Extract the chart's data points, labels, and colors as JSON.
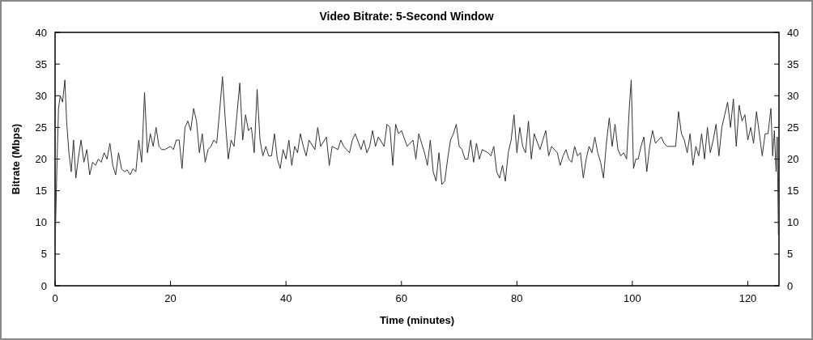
{
  "chart_data": {
    "type": "line",
    "title": "Video Bitrate: 5-Second Window",
    "xlabel": "Time (minutes)",
    "ylabel": "Bitrate (Mbps)",
    "xlim": [
      0,
      125.4
    ],
    "xticks": [
      0,
      20,
      40,
      60,
      80,
      100,
      120
    ],
    "ylim": [
      0,
      40
    ],
    "yticks": [
      0,
      5,
      10,
      15,
      20,
      25,
      30,
      35,
      40
    ],
    "y2lim": [
      0,
      40
    ],
    "y2ticks": [
      0,
      5,
      10,
      15,
      20,
      25,
      30,
      35,
      40
    ],
    "grid": false,
    "series": [
      {
        "color": "#333333",
        "x": [
          0,
          0.3,
          0.6,
          0.9,
          1.3,
          1.7,
          2.0,
          2.4,
          2.8,
          3.2,
          3.6,
          4.0,
          4.5,
          5.0,
          5.5,
          6,
          6.5,
          7,
          7.5,
          8,
          8.5,
          9,
          9.5,
          10,
          10.5,
          11,
          11.5,
          12,
          12.5,
          13,
          13.5,
          14,
          14.5,
          15,
          15.5,
          16,
          16.5,
          17,
          17.5,
          18,
          18.5,
          19,
          20,
          20.5,
          21,
          21.5,
          22,
          22.5,
          23,
          23.5,
          24,
          24.5,
          25,
          25.5,
          26,
          26.5,
          27,
          27.5,
          28,
          28.5,
          29,
          29.5,
          30,
          30.5,
          31,
          31.5,
          32,
          32.5,
          33,
          33.5,
          34,
          34.5,
          35,
          35.5,
          36,
          36.5,
          37,
          37.5,
          38,
          38.5,
          39,
          39.5,
          40,
          40.5,
          41,
          41.5,
          42,
          42.5,
          43,
          43.5,
          44,
          45,
          45.5,
          46,
          47,
          47.5,
          48,
          49,
          49.5,
          50,
          50.5,
          51,
          51.5,
          52,
          53,
          53.5,
          54,
          54.5,
          55,
          55.5,
          56,
          57,
          57.5,
          58,
          58.5,
          59,
          59.5,
          60,
          61,
          62,
          62.5,
          63,
          63.5,
          64,
          64.5,
          65,
          65.5,
          66,
          66.5,
          67,
          67.5,
          68,
          68.5,
          69,
          69.5,
          70,
          70.5,
          71,
          71.5,
          72,
          72.5,
          73,
          73.5,
          74,
          75,
          75.5,
          76,
          76.5,
          77,
          77.5,
          78,
          78.5,
          79,
          79.5,
          80,
          80.5,
          81,
          81.5,
          82,
          82.5,
          83,
          84,
          84.5,
          85,
          85.5,
          86,
          87,
          87.5,
          88,
          88.5,
          89,
          89.5,
          90,
          90.5,
          91,
          91.5,
          92,
          92.5,
          93,
          93.5,
          94,
          94.5,
          95,
          95.5,
          96,
          96.5,
          97,
          97.5,
          98,
          98.5,
          99,
          99.5,
          99.8,
          100.2,
          100.6,
          101,
          101.5,
          102,
          102.5,
          103,
          103.5,
          104,
          105,
          105.5,
          106,
          107,
          107.5,
          108,
          108.5,
          109,
          109.5,
          110,
          110.5,
          111,
          111.5,
          112,
          112.5,
          113,
          113.5,
          114,
          114.5,
          115,
          115.5,
          116,
          116.5,
          117,
          117.5,
          118,
          118.5,
          119,
          119.5,
          120,
          120.5,
          121,
          121.5,
          122,
          122.5,
          123,
          123.5,
          124,
          124.3,
          124.6,
          124.9,
          125.1,
          125.3
        ],
        "values": [
          6,
          18,
          28,
          30,
          29,
          32.5,
          26,
          21,
          18,
          23,
          17,
          20,
          23,
          19.5,
          21.5,
          17.5,
          19.5,
          19,
          20,
          19.5,
          21,
          20,
          22.5,
          19,
          17.5,
          21,
          18.5,
          18,
          18.3,
          17.5,
          18.5,
          18,
          23,
          19.5,
          30.5,
          21,
          24,
          22,
          25,
          22,
          21.5,
          21.5,
          22,
          21.5,
          23,
          23,
          18.5,
          25,
          26,
          24.5,
          28,
          26,
          21,
          24,
          19.5,
          21.5,
          22,
          23,
          22.5,
          27.5,
          33,
          26,
          20,
          23,
          22,
          27,
          32,
          23,
          27,
          24.5,
          25,
          21,
          31,
          23,
          20.5,
          22,
          20.5,
          20.5,
          24,
          20,
          18.5,
          21.5,
          20,
          23,
          19,
          22,
          21,
          24,
          22,
          20.5,
          23,
          21.5,
          25,
          22,
          23.5,
          19,
          22,
          21.5,
          23,
          22,
          21.5,
          21,
          23,
          24,
          21.5,
          23,
          21,
          22,
          24.5,
          22,
          23.5,
          22,
          25.5,
          25,
          19,
          25.5,
          24,
          24.5,
          22,
          23,
          20,
          24,
          22.5,
          21,
          19,
          23,
          18,
          16.5,
          21,
          16,
          16.5,
          20,
          23,
          24,
          25.5,
          22,
          21.5,
          20,
          20,
          23,
          19.5,
          22.5,
          20,
          21.5,
          21,
          20.5,
          22,
          18,
          17,
          19,
          16.5,
          21,
          23,
          27,
          21,
          25,
          22,
          21,
          26,
          20,
          24,
          21.5,
          23,
          24.5,
          20.5,
          22,
          21,
          19,
          20.5,
          21.5,
          20,
          19.5,
          22,
          20.5,
          21,
          17,
          20,
          22,
          21,
          23.5,
          21,
          19.5,
          17,
          22.5,
          26.5,
          22,
          25.5,
          21.5,
          20.5,
          21,
          20,
          28.5,
          32.5,
          18.5,
          20,
          20,
          22,
          23.5,
          18,
          22,
          24.5,
          22.5,
          23.5,
          22.5,
          22,
          22,
          22,
          27.5,
          24,
          23,
          21,
          24,
          19,
          22,
          20.5,
          24,
          20,
          25,
          21,
          23,
          25.5,
          20.5,
          25,
          27,
          29,
          25,
          29.5,
          22,
          28.5,
          26,
          27,
          23,
          25,
          22.5,
          27.5,
          24,
          20.5,
          24,
          24,
          28,
          20.5,
          24.5,
          18,
          23.5,
          8
        ]
      }
    ]
  }
}
